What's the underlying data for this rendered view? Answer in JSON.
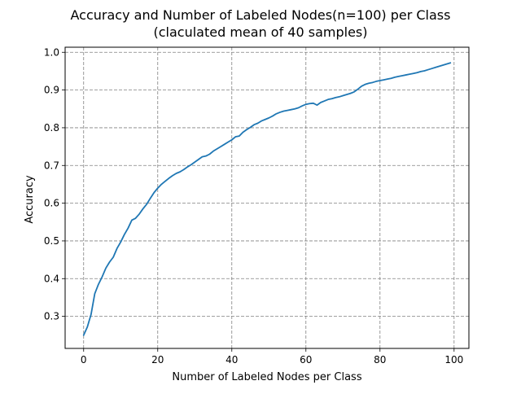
{
  "chart_data": {
    "type": "line",
    "title_line1": "Accuracy and Number of Labeled Nodes(n=100) per Class",
    "title_line2": "(claculated mean of 40 samples)",
    "xlabel": "Number of Labeled Nodes per Class",
    "ylabel": "Accuracy",
    "xlim": [
      -5,
      104
    ],
    "ylim": [
      0.215,
      1.0135
    ],
    "xticks": [
      0,
      20,
      40,
      60,
      80,
      100
    ],
    "xtick_labels": [
      "0",
      "20",
      "40",
      "60",
      "80",
      "100"
    ],
    "yticks": [
      0.3,
      0.4,
      0.5,
      0.6,
      0.7,
      0.8,
      0.9,
      1.0
    ],
    "ytick_labels": [
      "0.3",
      "0.4",
      "0.5",
      "0.6",
      "0.7",
      "0.8",
      "0.9",
      "1.0"
    ],
    "grid": true,
    "grid_style": "dashed",
    "line_color": "#1f77b4",
    "series": [
      {
        "x": [
          0,
          1,
          2,
          3,
          4,
          5,
          6,
          7,
          8,
          9,
          10,
          11,
          12,
          13,
          14,
          15,
          16,
          17,
          18,
          19,
          20,
          21,
          22,
          23,
          24,
          25,
          26,
          27,
          28,
          29,
          30,
          31,
          32,
          33,
          34,
          35,
          36,
          37,
          38,
          39,
          40,
          41,
          42,
          43,
          44,
          45,
          46,
          47,
          48,
          49,
          50,
          51,
          52,
          53,
          54,
          55,
          56,
          57,
          58,
          59,
          60,
          61,
          62,
          63,
          64,
          65,
          66,
          67,
          68,
          69,
          70,
          71,
          72,
          73,
          74,
          75,
          76,
          77,
          78,
          79,
          80,
          81,
          82,
          83,
          84,
          85,
          86,
          87,
          88,
          89,
          90,
          91,
          92,
          93,
          94,
          95,
          96,
          97,
          98,
          99
        ],
        "values": [
          0.25,
          0.272,
          0.305,
          0.36,
          0.385,
          0.405,
          0.428,
          0.444,
          0.457,
          0.48,
          0.497,
          0.517,
          0.534,
          0.555,
          0.56,
          0.571,
          0.585,
          0.597,
          0.613,
          0.628,
          0.64,
          0.65,
          0.658,
          0.666,
          0.673,
          0.679,
          0.683,
          0.689,
          0.696,
          0.702,
          0.709,
          0.716,
          0.723,
          0.725,
          0.73,
          0.738,
          0.744,
          0.75,
          0.756,
          0.762,
          0.768,
          0.776,
          0.778,
          0.788,
          0.795,
          0.801,
          0.808,
          0.812,
          0.818,
          0.822,
          0.826,
          0.831,
          0.837,
          0.841,
          0.844,
          0.846,
          0.848,
          0.85,
          0.853,
          0.858,
          0.862,
          0.864,
          0.865,
          0.86,
          0.867,
          0.871,
          0.875,
          0.877,
          0.88,
          0.882,
          0.885,
          0.888,
          0.891,
          0.895,
          0.902,
          0.91,
          0.915,
          0.918,
          0.92,
          0.923,
          0.925,
          0.927,
          0.929,
          0.931,
          0.934,
          0.936,
          0.938,
          0.94,
          0.942,
          0.944,
          0.946,
          0.949,
          0.951,
          0.954,
          0.957,
          0.96,
          0.963,
          0.966,
          0.969,
          0.972
        ]
      }
    ]
  }
}
